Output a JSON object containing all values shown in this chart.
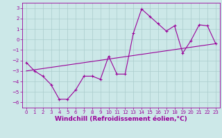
{
  "title": "",
  "xlabel": "Windchill (Refroidissement éolien,°C)",
  "ylabel": "",
  "bg_color": "#cce8e8",
  "line_color": "#990099",
  "xlim": [
    -0.5,
    23.5
  ],
  "ylim": [
    -6.5,
    3.5
  ],
  "yticks": [
    -6,
    -5,
    -4,
    -3,
    -2,
    -1,
    0,
    1,
    2,
    3
  ],
  "xticks": [
    0,
    1,
    2,
    3,
    4,
    5,
    6,
    7,
    8,
    9,
    10,
    11,
    12,
    13,
    14,
    15,
    16,
    17,
    18,
    19,
    20,
    21,
    22,
    23
  ],
  "data_x": [
    0,
    1,
    2,
    3,
    4,
    5,
    6,
    7,
    8,
    9,
    10,
    11,
    12,
    13,
    14,
    15,
    16,
    17,
    18,
    19,
    20,
    21,
    22,
    23
  ],
  "data_y": [
    -2.2,
    -3.0,
    -3.5,
    -4.3,
    -5.7,
    -5.7,
    -4.8,
    -3.5,
    -3.5,
    -3.8,
    -1.6,
    -3.3,
    -3.3,
    0.6,
    2.9,
    2.2,
    1.5,
    0.8,
    1.3,
    -1.3,
    -0.1,
    1.4,
    1.3,
    -0.4
  ],
  "trend_x": [
    0,
    23
  ],
  "trend_y": [
    -3.0,
    -0.4
  ],
  "grid_color": "#aacccc",
  "tick_fontsize": 5,
  "label_fontsize": 6.5
}
